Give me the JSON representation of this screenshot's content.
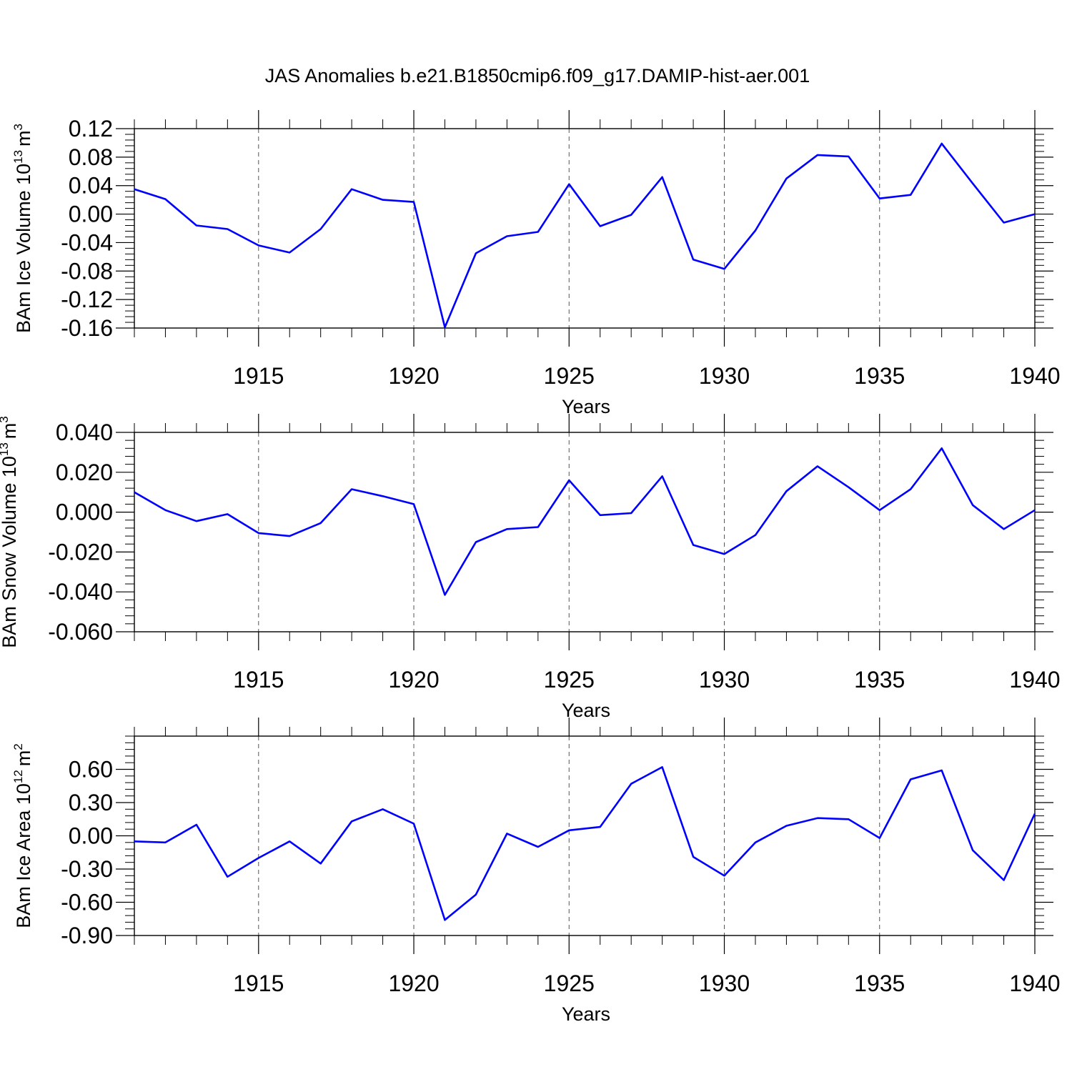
{
  "title": "JAS Anomalies b.e21.B1850cmip6.f09_g17.DAMIP-hist-aer.001",
  "chart_data": [
    {
      "type": "line",
      "ylabel": "BAm Ice Volume 10",
      "ylabel_exp": "13",
      "ylabel_unit": "m",
      "ylabel_unit_exp": "3",
      "xlabel": "Years",
      "xlim": [
        1911,
        1940
      ],
      "ylim": [
        -0.16,
        0.12
      ],
      "yticks": [
        -0.16,
        -0.12,
        -0.08,
        -0.04,
        0.0,
        0.04,
        0.08,
        0.12
      ],
      "ytick_labels": [
        "-0.16",
        "-0.12",
        "-0.08",
        "-0.04",
        "0.00",
        "0.04",
        "0.08",
        "0.12"
      ],
      "xticks": [
        1915,
        1920,
        1925,
        1930,
        1935,
        1940
      ],
      "xtick_labels": [
        "1915",
        "1920",
        "1925",
        "1930",
        "1935",
        "1940"
      ],
      "line_color": "#0000ff",
      "x": [
        1911,
        1912,
        1913,
        1914,
        1915,
        1916,
        1917,
        1918,
        1919,
        1920,
        1921,
        1922,
        1923,
        1924,
        1925,
        1926,
        1927,
        1928,
        1929,
        1930,
        1931,
        1932,
        1933,
        1934,
        1935,
        1936,
        1937,
        1938,
        1939,
        1940
      ],
      "values": [
        0.035,
        0.021,
        -0.016,
        -0.021,
        -0.044,
        -0.054,
        -0.021,
        0.035,
        0.02,
        0.017,
        -0.159,
        -0.055,
        -0.031,
        -0.025,
        0.042,
        -0.017,
        -0.001,
        0.052,
        -0.064,
        -0.077,
        -0.023,
        0.05,
        0.083,
        0.081,
        0.022,
        0.027,
        0.099,
        0.043,
        -0.012,
        0.0
      ]
    },
    {
      "type": "line",
      "ylabel": "BAm Snow Volume 10",
      "ylabel_exp": "13",
      "ylabel_unit": "m",
      "ylabel_unit_exp": "3",
      "xlabel": "Years",
      "xlim": [
        1911,
        1940
      ],
      "ylim": [
        -0.06,
        0.04
      ],
      "yticks": [
        -0.06,
        -0.04,
        -0.02,
        0.0,
        0.02,
        0.04
      ],
      "ytick_labels": [
        "-0.060",
        "-0.040",
        "-0.020",
        "0.000",
        "0.020",
        "0.040"
      ],
      "xticks": [
        1915,
        1920,
        1925,
        1930,
        1935,
        1940
      ],
      "xtick_labels": [
        "1915",
        "1920",
        "1925",
        "1930",
        "1935",
        "1940"
      ],
      "line_color": "#0000ff",
      "x": [
        1911,
        1912,
        1913,
        1914,
        1915,
        1916,
        1917,
        1918,
        1919,
        1920,
        1921,
        1922,
        1923,
        1924,
        1925,
        1926,
        1927,
        1928,
        1929,
        1930,
        1931,
        1932,
        1933,
        1934,
        1935,
        1936,
        1937,
        1938,
        1939,
        1940
      ],
      "values": [
        0.01,
        0.001,
        -0.0045,
        -0.001,
        -0.0105,
        -0.012,
        -0.0055,
        0.0115,
        0.008,
        0.004,
        -0.0415,
        -0.015,
        -0.0085,
        -0.0075,
        0.016,
        -0.0015,
        -0.0005,
        0.018,
        -0.0165,
        -0.021,
        -0.0115,
        0.0105,
        0.023,
        0.0125,
        0.001,
        0.0115,
        0.032,
        0.0035,
        -0.0085,
        0.001
      ]
    },
    {
      "type": "line",
      "ylabel": "BAm Ice Area 10",
      "ylabel_exp": "12",
      "ylabel_unit": "m",
      "ylabel_unit_exp": "2",
      "xlabel": "Years",
      "xlim": [
        1911,
        1940
      ],
      "ylim": [
        -0.9,
        0.9
      ],
      "yticks": [
        -0.9,
        -0.6,
        -0.3,
        0.0,
        0.3,
        0.6
      ],
      "ytick_labels": [
        "-0.90",
        "-0.60",
        "-0.30",
        "0.00",
        "0.30",
        "0.60"
      ],
      "xticks": [
        1915,
        1920,
        1925,
        1930,
        1935,
        1940
      ],
      "xtick_labels": [
        "1915",
        "1920",
        "1925",
        "1930",
        "1935",
        "1940"
      ],
      "line_color": "#0000ff",
      "x": [
        1911,
        1912,
        1913,
        1914,
        1915,
        1916,
        1917,
        1918,
        1919,
        1920,
        1921,
        1922,
        1923,
        1924,
        1925,
        1926,
        1927,
        1928,
        1929,
        1930,
        1931,
        1932,
        1933,
        1934,
        1935,
        1936,
        1937,
        1938,
        1939,
        1940
      ],
      "values": [
        -0.05,
        -0.06,
        0.1,
        -0.37,
        -0.2,
        -0.05,
        -0.25,
        0.13,
        0.24,
        0.11,
        -0.76,
        -0.53,
        0.02,
        -0.1,
        0.05,
        0.08,
        0.47,
        0.62,
        -0.19,
        -0.36,
        -0.06,
        0.09,
        0.16,
        0.15,
        -0.02,
        0.51,
        0.59,
        -0.13,
        -0.4,
        0.2
      ]
    }
  ]
}
